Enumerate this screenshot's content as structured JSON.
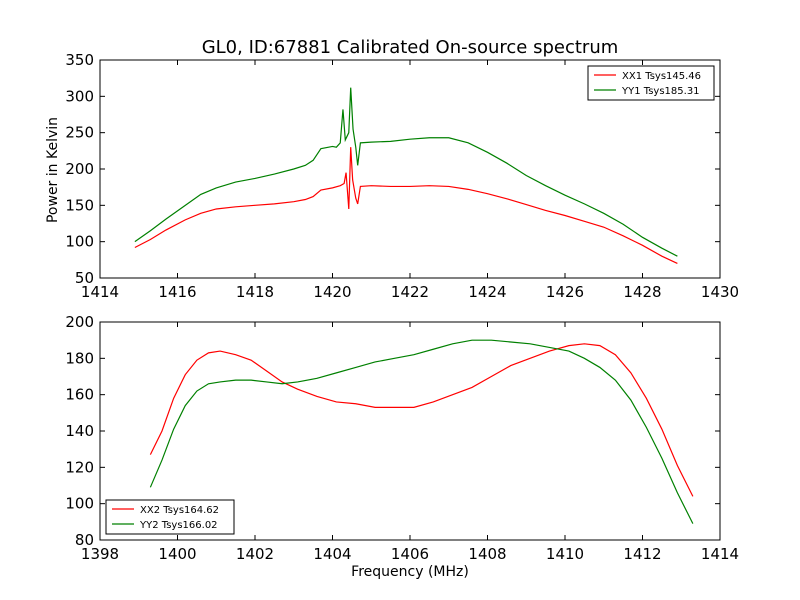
{
  "chart_data": [
    {
      "type": "line",
      "title": "GL0, ID:67881 Calibrated On-source spectrum",
      "ylabel": "Power in Kelvin",
      "xlabel": "",
      "xlim": [
        1414,
        1430
      ],
      "ylim": [
        50,
        350
      ],
      "xticks": [
        "1414",
        "1416",
        "1418",
        "1420",
        "1422",
        "1424",
        "1426",
        "1428",
        "1430"
      ],
      "yticks": [
        "50",
        "100",
        "150",
        "200",
        "250",
        "300",
        "350"
      ],
      "legend_position": "top-right",
      "series": [
        {
          "name": "XX1 Tsys145.46",
          "color": "#ff0000",
          "points": [
            [
              1414.9,
              92
            ],
            [
              1415.3,
              103
            ],
            [
              1415.7,
              116
            ],
            [
              1416.2,
              130
            ],
            [
              1416.6,
              139
            ],
            [
              1417.0,
              145
            ],
            [
              1417.5,
              148
            ],
            [
              1418.0,
              150
            ],
            [
              1418.5,
              152
            ],
            [
              1419.0,
              155
            ],
            [
              1419.3,
              158
            ],
            [
              1419.5,
              162
            ],
            [
              1419.7,
              171
            ],
            [
              1420.0,
              174
            ],
            [
              1420.2,
              177
            ],
            [
              1420.3,
              180
            ],
            [
              1420.35,
              195
            ],
            [
              1420.42,
              145
            ],
            [
              1420.47,
              230
            ],
            [
              1420.52,
              185
            ],
            [
              1420.6,
              160
            ],
            [
              1420.65,
              152
            ],
            [
              1420.72,
              176
            ],
            [
              1421.0,
              177
            ],
            [
              1421.5,
              176
            ],
            [
              1422.0,
              176
            ],
            [
              1422.5,
              177
            ],
            [
              1423.0,
              176
            ],
            [
              1423.5,
              172
            ],
            [
              1424.0,
              166
            ],
            [
              1424.5,
              159
            ],
            [
              1425.0,
              151
            ],
            [
              1425.5,
              143
            ],
            [
              1426.0,
              136
            ],
            [
              1426.5,
              128
            ],
            [
              1427.0,
              120
            ],
            [
              1427.5,
              108
            ],
            [
              1428.0,
              95
            ],
            [
              1428.5,
              80
            ],
            [
              1428.9,
              70
            ]
          ]
        },
        {
          "name": "YY1 Tsys185.31",
          "color": "#008000",
          "points": [
            [
              1414.9,
              100
            ],
            [
              1415.3,
              115
            ],
            [
              1415.7,
              131
            ],
            [
              1416.2,
              150
            ],
            [
              1416.6,
              165
            ],
            [
              1417.0,
              174
            ],
            [
              1417.5,
              182
            ],
            [
              1418.0,
              187
            ],
            [
              1418.5,
              193
            ],
            [
              1419.0,
              200
            ],
            [
              1419.3,
              205
            ],
            [
              1419.5,
              212
            ],
            [
              1419.7,
              228
            ],
            [
              1420.0,
              231
            ],
            [
              1420.1,
              230
            ],
            [
              1420.2,
              236
            ],
            [
              1420.27,
              282
            ],
            [
              1420.33,
              240
            ],
            [
              1420.42,
              250
            ],
            [
              1420.47,
              312
            ],
            [
              1420.53,
              255
            ],
            [
              1420.6,
              230
            ],
            [
              1420.65,
              205
            ],
            [
              1420.72,
              236
            ],
            [
              1421.0,
              237
            ],
            [
              1421.5,
              238
            ],
            [
              1422.0,
              241
            ],
            [
              1422.5,
              243
            ],
            [
              1423.0,
              243
            ],
            [
              1423.5,
              236
            ],
            [
              1424.0,
              223
            ],
            [
              1424.5,
              208
            ],
            [
              1425.0,
              191
            ],
            [
              1425.5,
              177
            ],
            [
              1426.0,
              164
            ],
            [
              1426.5,
              152
            ],
            [
              1427.0,
              139
            ],
            [
              1427.5,
              124
            ],
            [
              1428.0,
              106
            ],
            [
              1428.5,
              91
            ],
            [
              1428.9,
              80
            ]
          ]
        }
      ]
    },
    {
      "type": "line",
      "title": "",
      "xlabel": "Frequency (MHz)",
      "ylabel": "",
      "xlim": [
        1398,
        1414
      ],
      "ylim": [
        80,
        200
      ],
      "xticks": [
        "1398",
        "1400",
        "1402",
        "1404",
        "1406",
        "1408",
        "1410",
        "1412",
        "1414"
      ],
      "yticks": [
        "80",
        "100",
        "120",
        "140",
        "160",
        "180",
        "200"
      ],
      "legend_position": "bottom-left",
      "series": [
        {
          "name": "XX2 Tsys164.62",
          "color": "#ff0000",
          "points": [
            [
              1399.3,
              127
            ],
            [
              1399.6,
              140
            ],
            [
              1399.9,
              158
            ],
            [
              1400.2,
              171
            ],
            [
              1400.5,
              179
            ],
            [
              1400.8,
              183
            ],
            [
              1401.1,
              184
            ],
            [
              1401.5,
              182
            ],
            [
              1401.9,
              179
            ],
            [
              1402.3,
              173
            ],
            [
              1402.7,
              167
            ],
            [
              1403.1,
              163
            ],
            [
              1403.6,
              159
            ],
            [
              1404.1,
              156
            ],
            [
              1404.6,
              155
            ],
            [
              1405.1,
              153
            ],
            [
              1405.6,
              153
            ],
            [
              1406.1,
              153
            ],
            [
              1406.6,
              156
            ],
            [
              1407.1,
              160
            ],
            [
              1407.6,
              164
            ],
            [
              1408.1,
              170
            ],
            [
              1408.6,
              176
            ],
            [
              1409.1,
              180
            ],
            [
              1409.6,
              184
            ],
            [
              1410.1,
              187
            ],
            [
              1410.5,
              188
            ],
            [
              1410.9,
              187
            ],
            [
              1411.3,
              182
            ],
            [
              1411.7,
              172
            ],
            [
              1412.1,
              158
            ],
            [
              1412.5,
              141
            ],
            [
              1412.9,
              121
            ],
            [
              1413.3,
              104
            ]
          ]
        },
        {
          "name": "YY2 Tsys166.02",
          "color": "#008000",
          "points": [
            [
              1399.3,
              109
            ],
            [
              1399.6,
              124
            ],
            [
              1399.9,
              141
            ],
            [
              1400.2,
              154
            ],
            [
              1400.5,
              162
            ],
            [
              1400.8,
              166
            ],
            [
              1401.1,
              167
            ],
            [
              1401.5,
              168
            ],
            [
              1401.9,
              168
            ],
            [
              1402.3,
              167
            ],
            [
              1402.7,
              166
            ],
            [
              1403.1,
              167
            ],
            [
              1403.6,
              169
            ],
            [
              1404.1,
              172
            ],
            [
              1404.6,
              175
            ],
            [
              1405.1,
              178
            ],
            [
              1405.6,
              180
            ],
            [
              1406.1,
              182
            ],
            [
              1406.6,
              185
            ],
            [
              1407.1,
              188
            ],
            [
              1407.6,
              190
            ],
            [
              1408.1,
              190
            ],
            [
              1408.6,
              189
            ],
            [
              1409.1,
              188
            ],
            [
              1409.6,
              186
            ],
            [
              1410.1,
              184
            ],
            [
              1410.5,
              180
            ],
            [
              1410.9,
              175
            ],
            [
              1411.3,
              168
            ],
            [
              1411.7,
              157
            ],
            [
              1412.1,
              142
            ],
            [
              1412.5,
              125
            ],
            [
              1412.9,
              106
            ],
            [
              1413.3,
              89
            ]
          ]
        }
      ]
    }
  ]
}
